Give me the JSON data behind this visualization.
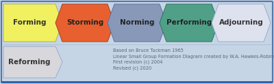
{
  "background_color": "#c5d5e5",
  "border_color": "#5577aa",
  "border_color2": "#2255aa",
  "top_row": [
    {
      "label": "Forming",
      "face_color": "#f0f060",
      "edge_color": "#b0b060",
      "text_color": "#333333"
    },
    {
      "label": "Storming",
      "face_color": "#e86030",
      "edge_color": "#a04020",
      "text_color": "#222222"
    },
    {
      "label": "Norming",
      "face_color": "#8898b8",
      "edge_color": "#6070a0",
      "text_color": "#222222"
    },
    {
      "label": "Performing",
      "face_color": "#50a088",
      "edge_color": "#307060",
      "text_color": "#222222"
    },
    {
      "label": "Adjourning",
      "face_color": "#dde2ee",
      "edge_color": "#9aaccc",
      "text_color": "#333333"
    }
  ],
  "bottom_row": [
    {
      "label": "Reforming",
      "face_color": "#d8d8dc",
      "edge_color": "#9aaccc",
      "text_color": "#333333"
    }
  ],
  "caption_lines": [
    "Based on Bruce Tuckman 1965",
    "Linear Small Group Formation Diagram created by W.A. Hawkes-Robinson",
    "First revision (c) 2004",
    "Revised (c) 2020"
  ],
  "caption_color": "#556677",
  "caption_fontsize": 4.8,
  "arrow_label_fontsize": 7.5,
  "fig_width": 4.0,
  "fig_height": 1.23,
  "dpi": 100
}
